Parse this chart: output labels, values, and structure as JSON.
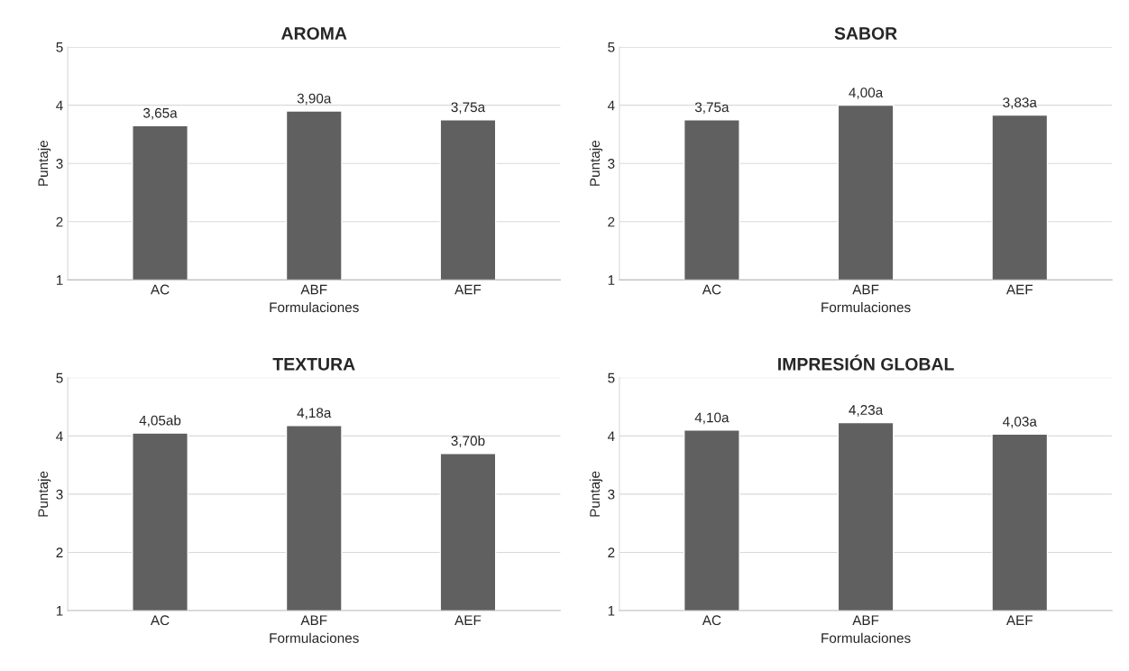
{
  "chart_data": [
    {
      "type": "bar",
      "title": "AROMA",
      "xlabel": "Formulaciones",
      "ylabel": "Puntaje",
      "categories": [
        "AC",
        "ABF",
        "AEF"
      ],
      "values": [
        3.65,
        3.9,
        3.75
      ],
      "value_labels": [
        "3,65a",
        "3,90a",
        "3,75a"
      ],
      "color": "#606060",
      "ylim": [
        1,
        5
      ],
      "yticks": [
        1,
        2,
        3,
        4,
        5
      ],
      "grid": "y"
    },
    {
      "type": "bar",
      "title": "SABOR",
      "xlabel": "Formulaciones",
      "ylabel": "Puntaje",
      "categories": [
        "AC",
        "ABF",
        "AEF"
      ],
      "values": [
        3.75,
        4.0,
        3.83
      ],
      "value_labels": [
        "3,75a",
        "4,00a",
        "3,83a"
      ],
      "color": "#606060",
      "ylim": [
        1,
        5
      ],
      "yticks": [
        1,
        2,
        3,
        4,
        5
      ],
      "grid": "y"
    },
    {
      "type": "bar",
      "title": "TEXTURA",
      "xlabel": "Formulaciones",
      "ylabel": "Puntaje",
      "categories": [
        "AC",
        "ABF",
        "AEF"
      ],
      "values": [
        4.05,
        4.18,
        3.7
      ],
      "value_labels": [
        "4,05ab",
        "4,18a",
        "3,70b"
      ],
      "color": "#606060",
      "ylim": [
        1,
        5
      ],
      "yticks": [
        1,
        2,
        3,
        4,
        5
      ],
      "grid": "y"
    },
    {
      "type": "bar",
      "title": "IMPRESIÓN GLOBAL",
      "xlabel": "Formulaciones",
      "ylabel": "Puntaje",
      "categories": [
        "AC",
        "ABF",
        "AEF"
      ],
      "values": [
        4.1,
        4.23,
        4.03
      ],
      "value_labels": [
        "4,10a",
        "4,23a",
        "4,03a"
      ],
      "color": "#606060",
      "ylim": [
        1,
        5
      ],
      "yticks": [
        1,
        2,
        3,
        4,
        5
      ],
      "grid": "y"
    }
  ]
}
